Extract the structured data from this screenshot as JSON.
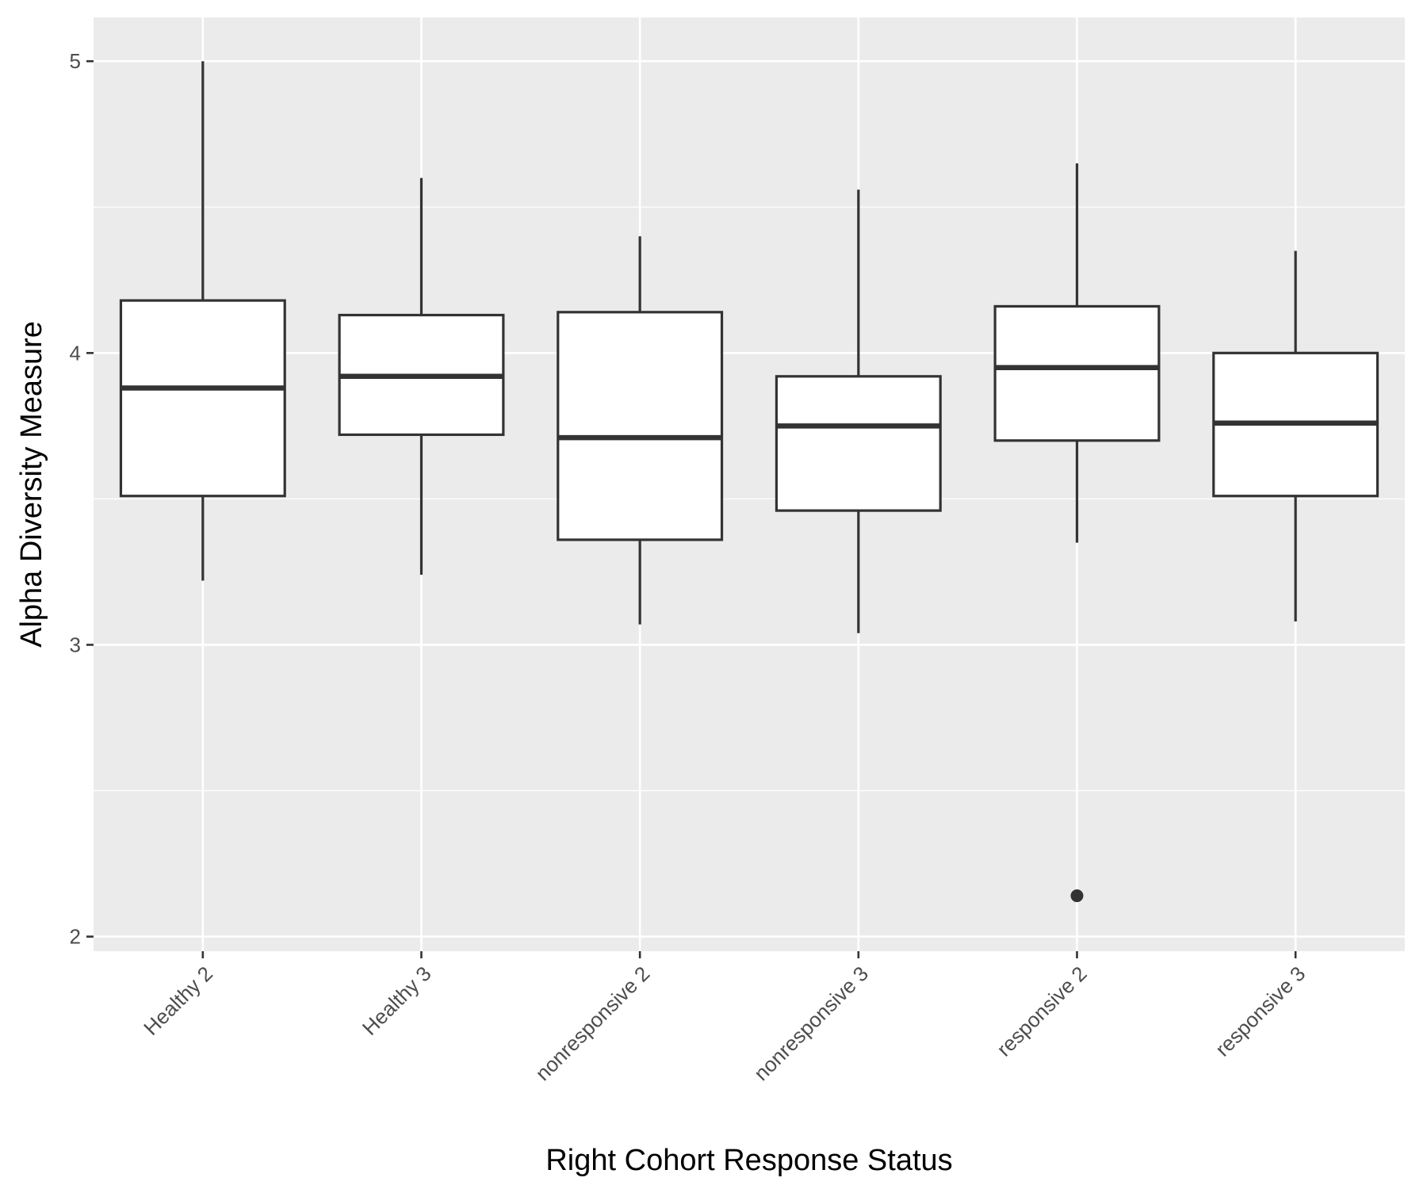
{
  "chart_data": {
    "type": "boxplot",
    "xlabel": "Right Cohort Response Status",
    "ylabel": "Alpha Diversity Measure",
    "ylim": [
      1.95,
      5.15
    ],
    "yticks": [
      2,
      3,
      4,
      5
    ],
    "grid": true,
    "categories": [
      "Healthy 2",
      "Healthy 3",
      "nonresponsive 2",
      "nonresponsive 3",
      "responsive 2",
      "responsive 3"
    ],
    "boxes": [
      {
        "category": "Healthy 2",
        "whisker_low": 3.22,
        "q1": 3.51,
        "median": 3.88,
        "q3": 4.18,
        "whisker_high": 5.0,
        "outliers": []
      },
      {
        "category": "Healthy 3",
        "whisker_low": 3.24,
        "q1": 3.72,
        "median": 3.92,
        "q3": 4.13,
        "whisker_high": 4.6,
        "outliers": []
      },
      {
        "category": "nonresponsive 2",
        "whisker_low": 3.07,
        "q1": 3.36,
        "median": 3.71,
        "q3": 4.14,
        "whisker_high": 4.4,
        "outliers": []
      },
      {
        "category": "nonresponsive 3",
        "whisker_low": 3.04,
        "q1": 3.46,
        "median": 3.75,
        "q3": 3.92,
        "whisker_high": 4.56,
        "outliers": []
      },
      {
        "category": "responsive 2",
        "whisker_low": 3.35,
        "q1": 3.7,
        "median": 3.95,
        "q3": 4.16,
        "whisker_high": 4.65,
        "outliers": [
          2.14
        ]
      },
      {
        "category": "responsive 3",
        "whisker_low": 3.08,
        "q1": 3.51,
        "median": 3.76,
        "q3": 4.0,
        "whisker_high": 4.35,
        "outliers": []
      }
    ],
    "colors": {
      "panel_background": "#ebebeb",
      "grid": "#ffffff",
      "box_fill": "#ffffff",
      "box_stroke": "#333333",
      "tick_text": "#4d4d4d",
      "title_text": "#000000"
    }
  }
}
